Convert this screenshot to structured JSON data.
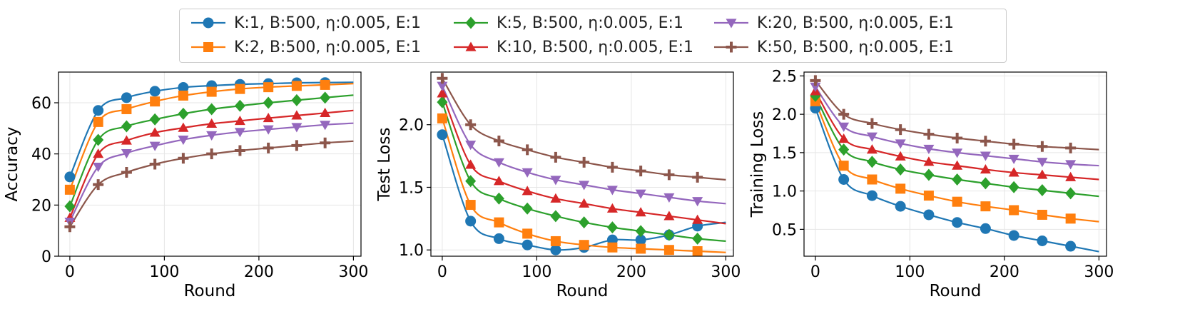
{
  "colors": [
    "#1f77b4",
    "#ff7f0e",
    "#2ca02c",
    "#d62728",
    "#9467bd",
    "#8c564b"
  ],
  "markers": [
    "circle",
    "square",
    "diamond",
    "triangle-up",
    "triangle-down",
    "plus"
  ],
  "legend": {
    "entries": [
      "K:1, B:500, η:0.005, E:1",
      "K:2, B:500, η:0.005, E:1",
      "K:5, B:500, η:0.005, E:1",
      "K:10, B:500, η:0.005, E:1",
      "K:20, B:500, η:0.005, E:1",
      "K:50, B:500, η:0.005, E:1"
    ]
  },
  "chart_data": [
    {
      "type": "line",
      "title": "",
      "xlabel": "Round",
      "ylabel": "Accuracy",
      "xlim": [
        -12,
        308
      ],
      "ylim": [
        0,
        72
      ],
      "xticks": [
        0,
        100,
        200,
        300
      ],
      "yticks": [
        0,
        20,
        40,
        60
      ],
      "grid": true,
      "x": [
        0,
        30,
        60,
        90,
        120,
        150,
        180,
        210,
        240,
        270,
        300
      ],
      "series": [
        {
          "name": "K:1, B:500, η:0.005, E:1",
          "values": [
            31,
            57,
            62,
            64.5,
            66,
            66.7,
            67.2,
            67.5,
            67.8,
            67.9,
            68
          ]
        },
        {
          "name": "K:2, B:500, η:0.005, E:1",
          "values": [
            26,
            52.5,
            57.5,
            60.5,
            62.8,
            64.3,
            65.4,
            66.1,
            66.6,
            67,
            67.5
          ]
        },
        {
          "name": "K:5, B:500, η:0.005, E:1",
          "values": [
            19.5,
            45.5,
            50.8,
            53.5,
            55.7,
            57.5,
            58.8,
            60,
            61,
            62,
            63
          ]
        },
        {
          "name": "K:10, B:500, η:0.005, E:1",
          "values": [
            15,
            40,
            45.2,
            48.3,
            50.2,
            51.8,
            52.9,
            54,
            55,
            56,
            57
          ]
        },
        {
          "name": "K:20, B:500, η:0.005, E:1",
          "values": [
            13.5,
            35,
            40.3,
            43.2,
            45.6,
            47.3,
            48.6,
            49.6,
            50.5,
            51.4,
            52
          ]
        },
        {
          "name": "K:50, B:500, η:0.005, E:1",
          "values": [
            11.5,
            28,
            32.8,
            36,
            38.3,
            40,
            41.3,
            42.3,
            43.3,
            44.3,
            45
          ]
        }
      ]
    },
    {
      "type": "line",
      "title": "",
      "xlabel": "Round",
      "ylabel": "Test Loss",
      "xlim": [
        -12,
        308
      ],
      "ylim": [
        0.95,
        2.42
      ],
      "xticks": [
        0,
        100,
        200,
        300
      ],
      "yticks": [
        1.0,
        1.5,
        2.0
      ],
      "grid": true,
      "x": [
        0,
        30,
        60,
        90,
        120,
        150,
        180,
        210,
        240,
        270,
        300
      ],
      "series": [
        {
          "name": "K:1, B:500, η:0.005, E:1",
          "values": [
            1.92,
            1.23,
            1.09,
            1.04,
            1.0,
            1.02,
            1.08,
            1.08,
            1.12,
            1.19,
            1.22
          ]
        },
        {
          "name": "K:2, B:500, η:0.005, E:1",
          "values": [
            2.05,
            1.36,
            1.22,
            1.13,
            1.07,
            1.04,
            1.02,
            1.01,
            1.0,
            0.99,
            0.98
          ]
        },
        {
          "name": "K:5, B:500, η:0.005, E:1",
          "values": [
            2.18,
            1.55,
            1.41,
            1.33,
            1.27,
            1.22,
            1.18,
            1.15,
            1.12,
            1.09,
            1.07
          ]
        },
        {
          "name": "K:10, B:500, η:0.005, E:1",
          "values": [
            2.25,
            1.68,
            1.55,
            1.47,
            1.41,
            1.37,
            1.33,
            1.3,
            1.27,
            1.24,
            1.21
          ]
        },
        {
          "name": "K:20, B:500, η:0.005, E:1",
          "values": [
            2.31,
            1.84,
            1.7,
            1.62,
            1.56,
            1.52,
            1.48,
            1.45,
            1.42,
            1.39,
            1.37
          ]
        },
        {
          "name": "K:50, B:500, η:0.005, E:1",
          "values": [
            2.37,
            2.0,
            1.87,
            1.8,
            1.74,
            1.7,
            1.66,
            1.63,
            1.6,
            1.58,
            1.56
          ]
        }
      ]
    },
    {
      "type": "line",
      "title": "",
      "xlabel": "Round",
      "ylabel": "Training Loss",
      "xlim": [
        -12,
        308
      ],
      "ylim": [
        0.15,
        2.55
      ],
      "xticks": [
        0,
        100,
        200,
        300
      ],
      "yticks": [
        0.5,
        1.0,
        1.5,
        2.0,
        2.5
      ],
      "grid": true,
      "x": [
        0,
        30,
        60,
        90,
        120,
        150,
        180,
        210,
        240,
        270,
        300
      ],
      "series": [
        {
          "name": "K:1, B:500, η:0.005, E:1",
          "values": [
            2.08,
            1.15,
            0.94,
            0.8,
            0.69,
            0.59,
            0.51,
            0.42,
            0.35,
            0.28,
            0.21
          ]
        },
        {
          "name": "K:2, B:500, η:0.005, E:1",
          "values": [
            2.17,
            1.33,
            1.15,
            1.03,
            0.94,
            0.86,
            0.8,
            0.75,
            0.69,
            0.64,
            0.6
          ]
        },
        {
          "name": "K:5, B:500, η:0.005, E:1",
          "values": [
            2.24,
            1.54,
            1.38,
            1.28,
            1.21,
            1.15,
            1.1,
            1.05,
            1.01,
            0.97,
            0.93
          ]
        },
        {
          "name": "K:10, B:500, η:0.005, E:1",
          "values": [
            2.3,
            1.68,
            1.54,
            1.45,
            1.38,
            1.33,
            1.28,
            1.24,
            1.21,
            1.18,
            1.15
          ]
        },
        {
          "name": "K:20, B:500, η:0.005, E:1",
          "values": [
            2.36,
            1.84,
            1.71,
            1.62,
            1.55,
            1.5,
            1.46,
            1.42,
            1.38,
            1.35,
            1.33
          ]
        },
        {
          "name": "K:50, B:500, η:0.005, E:1",
          "values": [
            2.44,
            2.0,
            1.88,
            1.8,
            1.74,
            1.69,
            1.65,
            1.61,
            1.58,
            1.56,
            1.54
          ]
        }
      ]
    }
  ]
}
